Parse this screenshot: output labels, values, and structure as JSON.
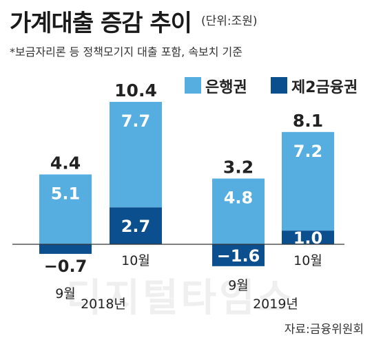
{
  "title": "가계대출 증감 추이",
  "unit": "(단위:조원)",
  "note": "*보금자리론 등 정책모기지 대출 포함, 속보치 기준",
  "source": "자료:금융위원회",
  "watermark": "디지털타임스",
  "colors": {
    "bank": "#55ade0",
    "nonbank": "#0c4f8e"
  },
  "chart_data": {
    "type": "bar",
    "stacked": true,
    "categories": [
      "9월",
      "10월",
      "9월",
      "10월"
    ],
    "years": [
      {
        "label": "2018년",
        "categories": [
          "9월",
          "10월"
        ]
      },
      {
        "label": "2019년",
        "categories": [
          "9월",
          "10월"
        ]
      }
    ],
    "series": [
      {
        "name": "은행권",
        "values": [
          5.1,
          7.7,
          4.8,
          7.2
        ]
      },
      {
        "name": "제2금융권",
        "values": [
          -0.7,
          2.7,
          -1.6,
          1.0
        ]
      }
    ],
    "totals": [
      4.4,
      10.4,
      3.2,
      8.1
    ],
    "legend": "top-right",
    "grid": false
  }
}
